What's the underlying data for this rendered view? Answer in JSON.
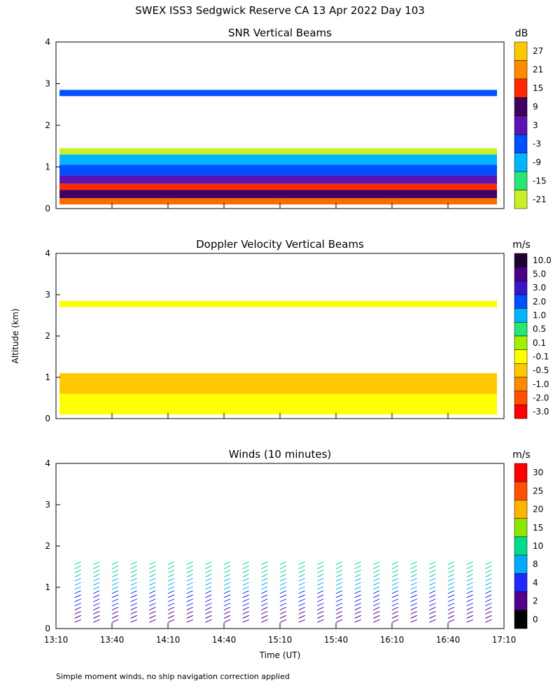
{
  "page_title": "SWEX ISS3 Sedgwick Reserve CA  13 Apr 2022 Day 103",
  "footnote": "Simple moment winds, no ship navigation correction applied",
  "chart_data": [
    {
      "type": "heatmap",
      "title": "SNR Vertical Beams",
      "ylim": [
        0,
        4
      ],
      "yticks": [
        "0",
        "1",
        "2",
        "3",
        "4"
      ],
      "colorbar": {
        "unit": "dB",
        "labels": [
          "27",
          "21",
          "15",
          "9",
          "3",
          "-3",
          "-9",
          "-15",
          "-21"
        ],
        "colors": [
          "#ffc800",
          "#ff8c00",
          "#ff2800",
          "#400060",
          "#5a14b4",
          "#0050ff",
          "#00b4ff",
          "#28e678",
          "#c8f028"
        ]
      },
      "layers": [
        {
          "y0": 0.1,
          "y1": 0.25,
          "color": "#ff6a00"
        },
        {
          "y0": 0.25,
          "y1": 0.45,
          "color": "#400060"
        },
        {
          "y0": 0.45,
          "y1": 0.6,
          "color": "#ff2800"
        },
        {
          "y0": 0.6,
          "y1": 0.8,
          "color": "#5a14b4"
        },
        {
          "y0": 0.8,
          "y1": 1.05,
          "color": "#0050ff"
        },
        {
          "y0": 1.05,
          "y1": 1.3,
          "color": "#00b4ff"
        },
        {
          "y0": 1.3,
          "y1": 1.45,
          "color": "#c8f028"
        },
        {
          "y0": 2.7,
          "y1": 2.85,
          "color": "#0050ff"
        }
      ]
    },
    {
      "type": "heatmap",
      "title": "Doppler Velocity Vertical Beams",
      "ylim": [
        0,
        4
      ],
      "yticks": [
        "0",
        "1",
        "2",
        "3",
        "4"
      ],
      "colorbar": {
        "unit": "m/s",
        "labels": [
          "10.0",
          "5.0",
          "3.0",
          "2.0",
          "1.0",
          "0.5",
          "0.1",
          "-0.1",
          "-0.5",
          "-1.0",
          "-2.0",
          "-3.0"
        ],
        "colors": [
          "#200030",
          "#4b0082",
          "#3c14c8",
          "#0050ff",
          "#00b4ff",
          "#28e678",
          "#a0f000",
          "#ffff00",
          "#ffc800",
          "#ff8c00",
          "#ff5000",
          "#ff0000"
        ]
      },
      "layers": [
        {
          "y0": 0.1,
          "y1": 0.6,
          "color": "#ffff00"
        },
        {
          "y0": 0.6,
          "y1": 1.1,
          "color": "#ffc800"
        },
        {
          "y0": 2.7,
          "y1": 2.85,
          "color": "#ffff00"
        }
      ]
    },
    {
      "type": "scatter",
      "title": "Winds (10 minutes)",
      "ylim": [
        0,
        4
      ],
      "yticks": [
        "0",
        "1",
        "2",
        "3",
        "4"
      ],
      "xlabel": "Time (UT)",
      "ylabel": "Altitude (km)",
      "xticks": [
        "13:10",
        "13:40",
        "14:10",
        "14:40",
        "15:10",
        "15:40",
        "16:10",
        "16:40",
        "17:10"
      ],
      "colorbar": {
        "unit": "m/s",
        "labels": [
          "30",
          "25",
          "20",
          "15",
          "10",
          "8",
          "4",
          "2",
          "0"
        ],
        "colors": [
          "#ff0000",
          "#ff5000",
          "#ffb400",
          "#8ce600",
          "#00dc8c",
          "#00aaff",
          "#1e28ff",
          "#50008c",
          "#000000"
        ]
      },
      "profile_times": [
        "13:20",
        "13:30",
        "13:40",
        "13:50",
        "14:00",
        "14:10",
        "14:20",
        "14:30",
        "14:40",
        "14:50",
        "15:00",
        "15:10",
        "15:20",
        "15:30",
        "15:40",
        "15:50",
        "16:00",
        "16:10",
        "16:20",
        "16:30",
        "16:40",
        "16:50",
        "17:00"
      ]
    }
  ]
}
